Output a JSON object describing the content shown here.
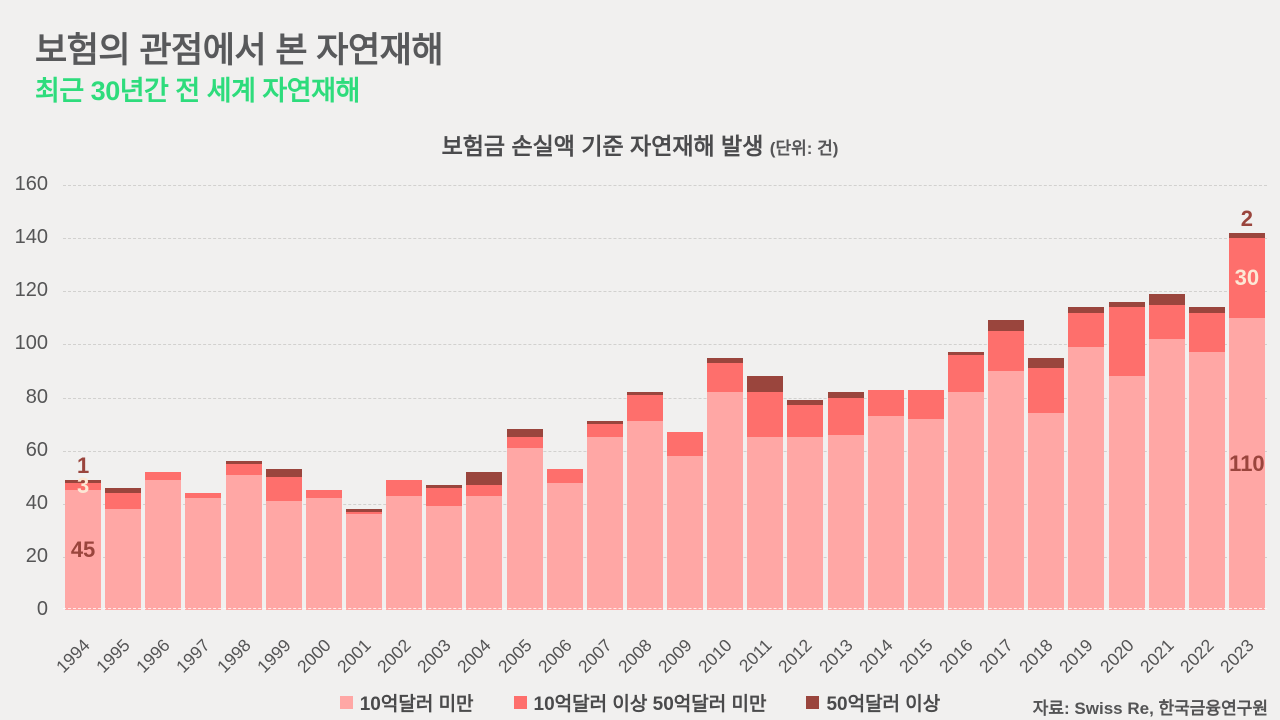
{
  "header": {
    "title": "보험의 관점에서 본 자연재해",
    "subtitle": "최근 30년간 전 세계 자연재해"
  },
  "chart": {
    "title": "보험금 손실액 기준 자연재해 발생",
    "unit_note": "(단위: 건)"
  },
  "source": "자료: Swiss Re, 한국금융연구원",
  "colors": {
    "background": "#F1F0EF",
    "title_text": "#58595B",
    "subtitle_green": "#2EDC7C",
    "axis_text": "#555556",
    "label_dark": "#9A453D",
    "label_light": "#FCE8D5"
  },
  "chart_data": {
    "type": "bar",
    "stacked": true,
    "title": "보험금 손실액 기준 자연재해 발생",
    "unit": "건",
    "xlabel": "",
    "ylabel": "",
    "ylim": [
      0,
      160
    ],
    "yticks": [
      0,
      20,
      40,
      60,
      80,
      100,
      120,
      140,
      160
    ],
    "grid": "horizontal-dashed",
    "legend_position": "bottom",
    "categories": [
      "1994",
      "1995",
      "1996",
      "1997",
      "1998",
      "1999",
      "2000",
      "2001",
      "2002",
      "2003",
      "2004",
      "2005",
      "2006",
      "2007",
      "2008",
      "2009",
      "2010",
      "2011",
      "2012",
      "2013",
      "2014",
      "2015",
      "2016",
      "2017",
      "2018",
      "2019",
      "2020",
      "2021",
      "2022",
      "2023"
    ],
    "series": [
      {
        "name": "10억달러 미만",
        "color": "#FFA7A5",
        "values": [
          45,
          38,
          49,
          42,
          51,
          41,
          42,
          36,
          43,
          39,
          43,
          61,
          48,
          65,
          71,
          58,
          82,
          65,
          65,
          66,
          73,
          72,
          82,
          90,
          74,
          99,
          88,
          102,
          97,
          110
        ]
      },
      {
        "name": "10억달러 이상 50억달러 미만",
        "color": "#FE6F6C",
        "values": [
          3,
          6,
          3,
          2,
          4,
          9,
          3,
          1,
          6,
          7,
          4,
          4,
          5,
          5,
          10,
          9,
          11,
          17,
          12,
          14,
          10,
          11,
          14,
          15,
          17,
          13,
          26,
          13,
          15,
          30
        ]
      },
      {
        "name": "50억달러 이상",
        "color": "#9A453D",
        "values": [
          1,
          2,
          0,
          0,
          1,
          3,
          0,
          1,
          0,
          1,
          5,
          3,
          0,
          1,
          1,
          0,
          2,
          6,
          2,
          2,
          0,
          0,
          1,
          4,
          4,
          2,
          2,
          4,
          2,
          2
        ]
      }
    ],
    "value_labels": [
      {
        "category": "1994",
        "series": 0,
        "text": "45",
        "style": "dark",
        "placement": "inside"
      },
      {
        "category": "1994",
        "series": 1,
        "text": "3",
        "style": "light",
        "placement": "inside"
      },
      {
        "category": "1994",
        "series": 2,
        "text": "1",
        "style": "dark",
        "placement": "above"
      },
      {
        "category": "2023",
        "series": 0,
        "text": "110",
        "style": "dark",
        "placement": "inside"
      },
      {
        "category": "2023",
        "series": 1,
        "text": "30",
        "style": "light",
        "placement": "inside"
      },
      {
        "category": "2023",
        "series": 2,
        "text": "2",
        "style": "dark",
        "placement": "above"
      }
    ]
  }
}
